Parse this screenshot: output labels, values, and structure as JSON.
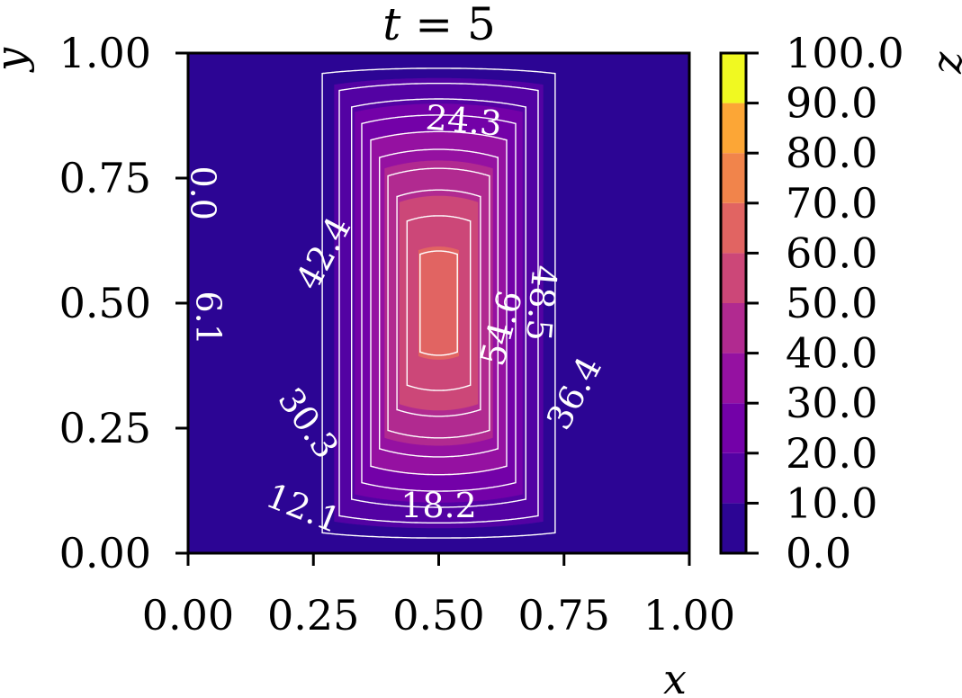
{
  "chart_data": {
    "type": "contour",
    "title": {
      "var": "t",
      "rest": " = 5"
    },
    "xlabel": "x",
    "ylabel": "y",
    "colorbar_label": "z",
    "xlim": [
      0,
      1
    ],
    "ylim": [
      0,
      1
    ],
    "x_ticks": [
      "0.00",
      "0.25",
      "0.50",
      "0.75",
      "1.00"
    ],
    "y_ticks": [
      "0.00",
      "0.25",
      "0.50",
      "0.75",
      "1.00"
    ],
    "colorbar_levels": [
      0,
      10,
      20,
      30,
      40,
      50,
      60,
      70,
      80,
      90,
      100
    ],
    "colorbar_ticks": [
      "0.0",
      "10.0",
      "20.0",
      "30.0",
      "40.0",
      "50.0",
      "60.0",
      "70.0",
      "80.0",
      "90.0",
      "100.0"
    ],
    "band_colors": [
      "#2c0594",
      "#5302a3",
      "#7301a8",
      "#9511a1",
      "#b12a90",
      "#cc4778",
      "#e16462",
      "#f1844b",
      "#fca636",
      "#f0f921"
    ],
    "field_peak_value": 64,
    "field_center": [
      0.5,
      0.5
    ],
    "line_levels": [
      0,
      6.1,
      12.1,
      18.2,
      24.3,
      30.3,
      36.4,
      42.4,
      48.5,
      54.6,
      60.6
    ],
    "contour_labels": [
      {
        "text": "0.0",
        "x": 0.03,
        "y": 0.72,
        "rotation": 90
      },
      {
        "text": "6.1",
        "x": 0.04,
        "y": 0.47,
        "rotation": 90
      },
      {
        "text": "12.1",
        "x": 0.23,
        "y": 0.09,
        "rotation": 22
      },
      {
        "text": "18.2",
        "x": 0.5,
        "y": 0.095,
        "rotation": 0
      },
      {
        "text": "24.3",
        "x": 0.55,
        "y": 0.865,
        "rotation": 5
      },
      {
        "text": "30.3",
        "x": 0.24,
        "y": 0.26,
        "rotation": 55
      },
      {
        "text": "36.4",
        "x": 0.77,
        "y": 0.32,
        "rotation": -62
      },
      {
        "text": "42.4",
        "x": 0.27,
        "y": 0.6,
        "rotation": -62
      },
      {
        "text": "48.5",
        "x": 0.705,
        "y": 0.5,
        "rotation": 95
      },
      {
        "text": "54.6",
        "x": 0.625,
        "y": 0.45,
        "rotation": -75
      }
    ]
  }
}
